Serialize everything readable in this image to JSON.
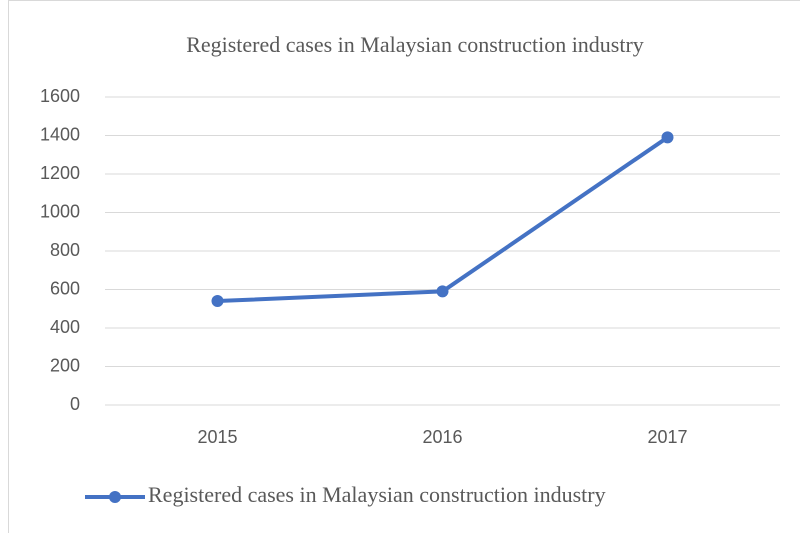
{
  "chart_data": {
    "type": "line",
    "title": "Registered cases in Malaysian construction industry",
    "categories": [
      "2015",
      "2016",
      "2017"
    ],
    "series": [
      {
        "name": "Registered cases in Malaysian construction industry",
        "color": "#4472c4",
        "values": [
          540,
          590,
          1390
        ]
      }
    ],
    "ylim": [
      0,
      1600
    ],
    "yticks": [
      0,
      200,
      400,
      600,
      800,
      1000,
      1200,
      1400,
      1600
    ],
    "grid": true,
    "legend": "bottom"
  }
}
